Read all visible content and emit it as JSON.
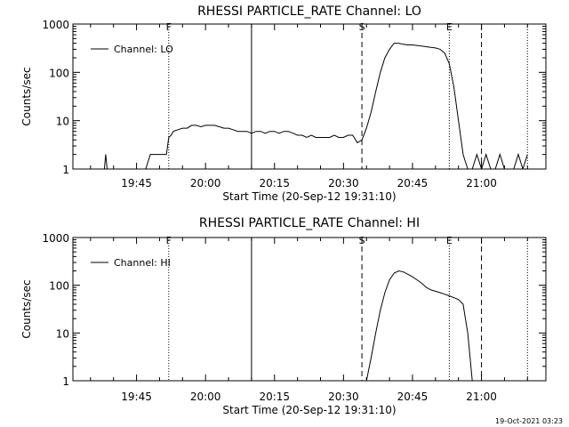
{
  "chart_data": [
    {
      "type": "line",
      "title": "RHESSI PARTICLE_RATE Channel: LO",
      "xlabel": "Start Time (20-Sep-12 19:31:10)",
      "ylabel": "Counts/sec",
      "yscale": "log",
      "ylim": [
        1,
        1000
      ],
      "xlim": [
        "19:31:10",
        "21:14:00"
      ],
      "x_ticks": [
        "19:45",
        "20:00",
        "20:15",
        "20:30",
        "20:45",
        "21:00"
      ],
      "y_ticks": [
        "1",
        "10",
        "100",
        "1000"
      ],
      "legend": {
        "label": "Channel: LO",
        "placement": "top-left"
      },
      "markers": [
        {
          "label": "F",
          "time": "19:52",
          "style": "dotted"
        },
        {
          "label": "",
          "time": "20:10",
          "style": "solid"
        },
        {
          "label": "S",
          "time": "20:34",
          "style": "dashed"
        },
        {
          "label": "E",
          "time": "20:53",
          "style": "dotted"
        },
        {
          "label": "",
          "time": "21:00",
          "style": "dashed"
        },
        {
          "label": "",
          "time": "21:10",
          "style": "dotted"
        }
      ],
      "series": [
        {
          "x": [
            "19:38",
            "19:38.3",
            "19:38.6",
            "19:39",
            "19:44",
            "19:47",
            "19:48",
            "19:50",
            "19:51",
            "19:51.5",
            "19:52",
            "19:52.5",
            "19:53",
            "19:54",
            "19:55",
            "19:56",
            "19:57",
            "19:58",
            "19:59",
            "20:00",
            "20:01",
            "20:02",
            "20:03",
            "20:04",
            "20:05",
            "20:06",
            "20:07",
            "20:08",
            "20:09",
            "20:10",
            "20:11",
            "20:12",
            "20:13",
            "20:14",
            "20:15",
            "20:16",
            "20:17",
            "20:18",
            "20:19",
            "20:20",
            "20:21",
            "20:22",
            "20:23",
            "20:24",
            "20:25",
            "20:26",
            "20:27",
            "20:28",
            "20:29",
            "20:30",
            "20:31",
            "20:32",
            "20:33",
            "20:34",
            "20:35",
            "20:36",
            "20:37",
            "20:38",
            "20:39",
            "20:40",
            "20:41",
            "20:42",
            "20:43",
            "20:44",
            "20:45",
            "20:46",
            "20:47",
            "20:48",
            "20:49",
            "20:50",
            "20:51",
            "20:52",
            "20:53",
            "20:54",
            "20:55",
            "20:56",
            "20:57",
            "20:58",
            "20:59",
            "21:00",
            "21:01",
            "21:02",
            "21:03",
            "21:04",
            "21:05",
            "21:06",
            "21:07",
            "21:08",
            "21:09",
            "21:10"
          ],
          "y": [
            1,
            2,
            1,
            1,
            1,
            1,
            2,
            2,
            2,
            2,
            4.5,
            5,
            6,
            6.5,
            7,
            7,
            8,
            8,
            7.5,
            8,
            8,
            8,
            7.5,
            7,
            7,
            6.5,
            6,
            6,
            6,
            5.5,
            6,
            6,
            5.5,
            6,
            6,
            5.5,
            6,
            6,
            5.5,
            5,
            5,
            4.5,
            5,
            4.5,
            4.5,
            4.5,
            4.5,
            5,
            4.5,
            4.5,
            5,
            5,
            3.5,
            4,
            7,
            15,
            40,
            100,
            200,
            300,
            400,
            400,
            380,
            370,
            370,
            360,
            350,
            340,
            330,
            320,
            300,
            250,
            150,
            50,
            10,
            2,
            1,
            1,
            2,
            1,
            2,
            1,
            1,
            2,
            1,
            1,
            1,
            2,
            1,
            2
          ]
        }
      ]
    },
    {
      "type": "line",
      "title": "RHESSI PARTICLE_RATE Channel: HI",
      "xlabel": "Start Time (20-Sep-12 19:31:10)",
      "ylabel": "Counts/sec",
      "yscale": "log",
      "ylim": [
        1,
        1000
      ],
      "xlim": [
        "19:31:10",
        "21:14:00"
      ],
      "x_ticks": [
        "19:45",
        "20:00",
        "20:15",
        "20:30",
        "20:45",
        "21:00"
      ],
      "y_ticks": [
        "1",
        "10",
        "100",
        "1000"
      ],
      "legend": {
        "label": "Channel: HI",
        "placement": "top-left"
      },
      "markers": [
        {
          "label": "F",
          "time": "19:52",
          "style": "dotted"
        },
        {
          "label": "",
          "time": "20:10",
          "style": "solid"
        },
        {
          "label": "S",
          "time": "20:34",
          "style": "dashed"
        },
        {
          "label": "E",
          "time": "20:53",
          "style": "dotted"
        },
        {
          "label": "",
          "time": "21:00",
          "style": "dashed"
        },
        {
          "label": "",
          "time": "21:10",
          "style": "dotted"
        }
      ],
      "series": [
        {
          "x": [
            "20:35",
            "20:36",
            "20:37",
            "20:38",
            "20:39",
            "20:40",
            "20:41",
            "20:42",
            "20:43",
            "20:44",
            "20:45",
            "20:46",
            "20:47",
            "20:48",
            "20:49",
            "20:50",
            "20:51",
            "20:52",
            "20:53",
            "20:54",
            "20:55",
            "20:56",
            "20:57",
            "20:58"
          ],
          "y": [
            1,
            3,
            10,
            30,
            70,
            130,
            180,
            200,
            190,
            170,
            150,
            130,
            110,
            90,
            80,
            75,
            70,
            65,
            60,
            55,
            50,
            40,
            10,
            1
          ]
        }
      ]
    }
  ],
  "timestamp": "19-Oct-2021 03:23"
}
